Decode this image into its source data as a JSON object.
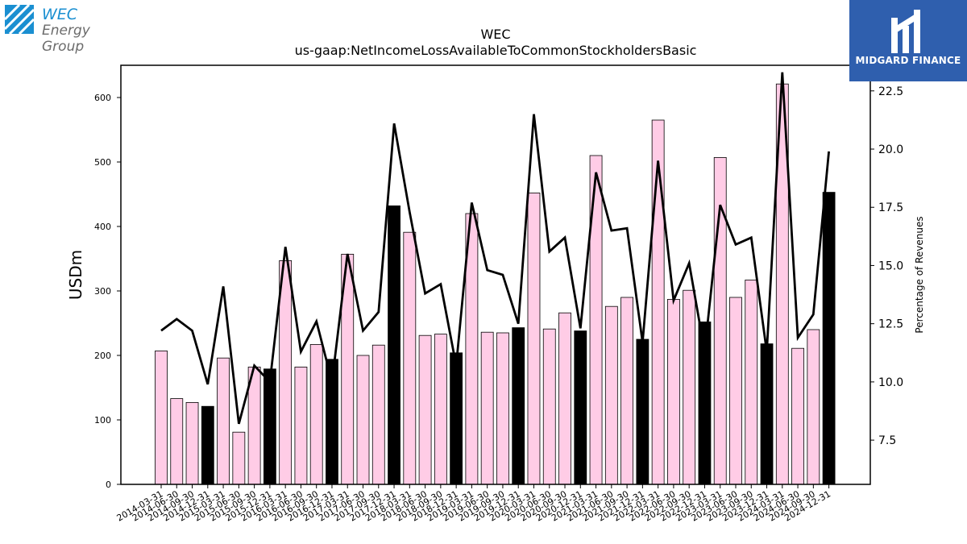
{
  "logos": {
    "company_line1": "WEC",
    "company_line2": "Energy Group",
    "publisher": "MIDGARD FINANCE"
  },
  "colors": {
    "bar_default": "#ffcce6",
    "bar_q4": "#000000",
    "line": "#000000",
    "wec_blue": "#1a8fd1",
    "publisher_bg": "#2f5fae"
  },
  "chart_data": {
    "type": "bar",
    "title": "WEC",
    "subtitle": "us-gaap:NetIncomeLossAvailableToCommonStockholdersBasic",
    "ylabel": "USDm",
    "y2label": "Percentage of Revenues",
    "ylim": [
      0,
      650
    ],
    "y2lim": [
      5.6,
      23.6
    ],
    "yticks": [
      0,
      100,
      200,
      300,
      400,
      500,
      600
    ],
    "y2ticks": [
      "7.5",
      "10.0",
      "12.5",
      "15.0",
      "17.5",
      "20.0",
      "22.5"
    ],
    "categories": [
      "2014-03-31",
      "2014-06-30",
      "2014-09-30",
      "2014-12-31",
      "2015-03-31",
      "2015-06-30",
      "2015-09-30",
      "2015-12-31",
      "2016-03-31",
      "2016-06-30",
      "2016-09-30",
      "2016-12-31",
      "2017-03-31",
      "2017-06-30",
      "2017-09-30",
      "2017-12-31",
      "2018-03-31",
      "2018-06-30",
      "2018-09-30",
      "2018-12-31",
      "2019-03-31",
      "2019-06-30",
      "2019-09-30",
      "2019-12-31",
      "2020-03-31",
      "2020-06-30",
      "2020-09-30",
      "2020-12-31",
      "2021-03-31",
      "2021-06-30",
      "2021-09-30",
      "2021-12-31",
      "2022-03-31",
      "2022-06-30",
      "2022-09-30",
      "2022-12-31",
      "2023-03-31",
      "2023-06-30",
      "2023-09-30",
      "2023-12-31",
      "2024-03-31",
      "2024-06-30",
      "2024-09-30",
      "2024-12-31"
    ],
    "series": [
      {
        "kind": "bar",
        "axis": "left",
        "values": [
          207,
          133,
          127,
          121,
          196,
          81,
          182,
          179,
          347,
          182,
          217,
          194,
          357,
          200,
          216,
          432,
          391,
          231,
          233,
          204,
          420,
          236,
          235,
          243,
          452,
          241,
          266,
          238,
          510,
          276,
          290,
          225,
          565,
          287,
          301,
          252,
          507,
          290,
          317,
          218,
          621,
          211,
          240,
          453
        ],
        "highlight_every_4th_from_index": 3
      },
      {
        "kind": "line",
        "axis": "right",
        "values": [
          12.2,
          12.7,
          12.2,
          9.9,
          14.1,
          8.2,
          10.7,
          10.0,
          15.8,
          11.3,
          12.6,
          10.0,
          15.5,
          12.2,
          13.0,
          21.1,
          17.3,
          13.8,
          14.2,
          10.7,
          17.7,
          14.8,
          14.6,
          12.5,
          21.5,
          15.6,
          16.2,
          12.3,
          19.0,
          16.5,
          16.6,
          11.7,
          19.5,
          13.5,
          15.1,
          11.3,
          17.6,
          15.9,
          16.2,
          11.3,
          23.3,
          11.9,
          12.9,
          19.9
        ]
      }
    ]
  }
}
